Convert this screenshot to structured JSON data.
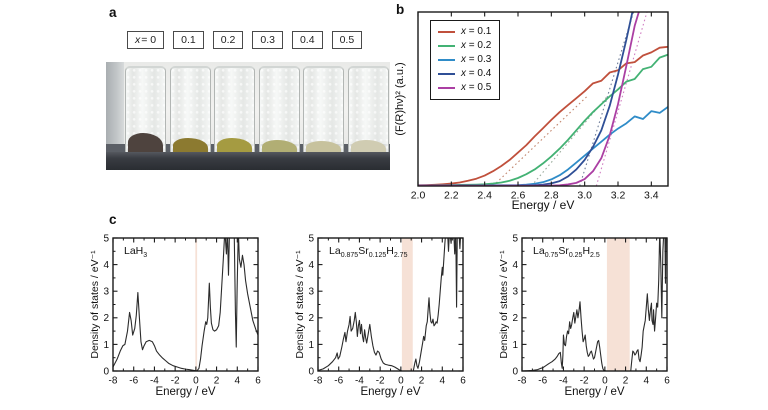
{
  "figure": {
    "panel_a_label": "a",
    "panel_b_label": "b",
    "panel_c_label": "c"
  },
  "panel_a": {
    "sample_labels": [
      "x = 0",
      "0.1",
      "0.2",
      "0.3",
      "0.4",
      "0.5"
    ],
    "vials": [
      {
        "powder_color": "#4e433e",
        "powder_height": 24
      },
      {
        "powder_color": "#8c7a30",
        "powder_height": 19
      },
      {
        "powder_color": "#a59b41",
        "powder_height": 19
      },
      {
        "powder_color": "#b1ae74",
        "powder_height": 17
      },
      {
        "powder_color": "#c7c29d",
        "powder_height": 16
      },
      {
        "powder_color": "#d0ccb2",
        "powder_height": 17
      }
    ]
  },
  "chart_data": [
    {
      "id": "tauc-plot",
      "type": "line",
      "xlabel": "Energy / eV",
      "ylabel": "(F(R)hν)² (a.u.)",
      "xlim": [
        2.0,
        3.5
      ],
      "ylim": [
        0,
        1.0
      ],
      "xticks": [
        2.0,
        2.2,
        2.4,
        2.6,
        2.8,
        3.0,
        3.2,
        3.4
      ],
      "xtick_labels": [
        "2.0",
        "2.2",
        "2.4",
        "2.6",
        "2.8",
        "3.0",
        "3.2",
        "3.4"
      ],
      "yticks": [],
      "ytick_labels": [],
      "tick_size": 10.5,
      "label_size": 12,
      "line_width": 1.8,
      "legend": true,
      "legend_position": "top-left",
      "series": [
        {
          "name": "x = 0.1",
          "color": "#c0503c",
          "x0": 2.0,
          "dx": 0.05,
          "y": [
            0.004,
            0.005,
            0.007,
            0.01,
            0.014,
            0.02,
            0.03,
            0.042,
            0.06,
            0.085,
            0.115,
            0.15,
            0.192,
            0.235,
            0.285,
            0.332,
            0.38,
            0.425,
            0.465,
            0.505,
            0.545,
            0.59,
            0.605,
            0.652,
            0.665,
            0.705,
            0.712,
            0.75,
            0.768,
            0.795,
            0.8
          ]
        },
        {
          "name": "x = 0.2",
          "color": "#43b274",
          "x0": 2.0,
          "dx": 0.05,
          "y": [
            0.003,
            0.003,
            0.004,
            0.004,
            0.005,
            0.006,
            0.007,
            0.008,
            0.01,
            0.014,
            0.02,
            0.03,
            0.046,
            0.068,
            0.095,
            0.13,
            0.17,
            0.215,
            0.265,
            0.32,
            0.375,
            0.425,
            0.47,
            0.515,
            0.555,
            0.6,
            0.615,
            0.672,
            0.685,
            0.738,
            0.755
          ]
        },
        {
          "name": "x = 0.3",
          "color": "#2f8cc8",
          "x0": 2.0,
          "dx": 0.05,
          "y": [
            0.002,
            0.002,
            0.002,
            0.002,
            0.003,
            0.003,
            0.003,
            0.003,
            0.003,
            0.004,
            0.004,
            0.004,
            0.005,
            0.008,
            0.013,
            0.022,
            0.038,
            0.062,
            0.095,
            0.135,
            0.175,
            0.215,
            0.255,
            0.295,
            0.33,
            0.36,
            0.4,
            0.385,
            0.43,
            0.42,
            0.455
          ]
        },
        {
          "name": "x = 0.4",
          "color": "#2f4f96",
          "x0": 2.0,
          "dx": 0.05,
          "y": [
            0.002,
            0.002,
            0.002,
            0.002,
            0.002,
            0.002,
            0.002,
            0.002,
            0.002,
            0.002,
            0.002,
            0.002,
            0.002,
            0.003,
            0.004,
            0.008,
            0.015,
            0.028,
            0.055,
            0.095,
            0.15,
            0.225,
            0.32,
            0.46,
            0.64,
            0.84,
            1.06
          ]
        },
        {
          "name": "x = 0.5",
          "color": "#ab3fa3",
          "x0": 2.0,
          "dx": 0.05,
          "y": [
            0.002,
            0.002,
            0.002,
            0.002,
            0.002,
            0.002,
            0.002,
            0.002,
            0.002,
            0.002,
            0.002,
            0.002,
            0.002,
            0.002,
            0.002,
            0.002,
            0.002,
            0.004,
            0.009,
            0.018,
            0.04,
            0.085,
            0.16,
            0.29,
            0.47,
            0.69,
            0.92,
            1.08
          ]
        }
      ],
      "extrapolations": [
        {
          "x1": 2.45,
          "y1": 0,
          "x2": 3.02,
          "y2": 0.52,
          "color": "#c2876f"
        },
        {
          "x1": 2.68,
          "y1": 0,
          "x2": 3.14,
          "y2": 0.52,
          "color": "#9aab9c"
        },
        {
          "x1": 2.97,
          "y1": 0,
          "x2": 3.3,
          "y2": 1.02,
          "color": "#6f7d99"
        },
        {
          "x1": 3.07,
          "y1": 0,
          "x2": 3.38,
          "y2": 1.02,
          "color": "#d07ec2"
        }
      ]
    },
    {
      "id": "dos-lah3",
      "type": "line",
      "formula": [
        {
          "t": "LaH"
        },
        {
          "t": "3",
          "sub": true
        }
      ],
      "xlabel": "Energy / eV",
      "ylabel": "Density of states / eV⁻¹",
      "xlim": [
        -8,
        6
      ],
      "ylim": [
        0,
        5
      ],
      "xticks": [
        -8,
        -6,
        -4,
        -2,
        0,
        2,
        4,
        6
      ],
      "xtick_labels": [
        "-8",
        "-6",
        "-4",
        "-2",
        "0",
        "2",
        "4",
        "6"
      ],
      "xminor": [
        -7,
        -5,
        -3,
        -1,
        1,
        3,
        5
      ],
      "yticks": [
        0,
        1,
        2,
        3,
        4,
        5
      ],
      "ytick_labels": [
        "0",
        "1",
        "2",
        "3",
        "4",
        "5"
      ],
      "yminor": [
        0.5,
        1.5,
        2.5,
        3.5,
        4.5
      ],
      "band": [
        -0.05,
        0.12
      ],
      "band_color": "#f6e1d6",
      "tick_size": 10,
      "label_size": 11.5,
      "line_width": 1.1,
      "series": [
        {
          "name": "total-dos",
          "color": "#2b2b2b",
          "x": [
            -8.0,
            -7.6,
            -7.3,
            -7.05,
            -6.85,
            -6.6,
            -6.4,
            -6.25,
            -6.1,
            -5.9,
            -5.75,
            -5.6,
            -5.45,
            -5.3,
            -5.15,
            -5.0,
            -4.8,
            -4.5,
            -4.2,
            -4.0,
            -3.8,
            -3.5,
            -3.2,
            -2.9,
            -2.6,
            -2.2,
            -1.8,
            -1.4,
            -1.0,
            -0.6,
            -0.2,
            0.1,
            0.3,
            0.45,
            0.6,
            0.8,
            0.95,
            1.05,
            1.15,
            1.3,
            1.4,
            1.5,
            1.65,
            1.8,
            2.0,
            2.2,
            2.35,
            2.5,
            2.65,
            2.8,
            2.95,
            3.05,
            3.15,
            3.25,
            3.5,
            3.7,
            3.82,
            3.9,
            3.98,
            4.1,
            4.2,
            4.35,
            4.5,
            4.65,
            4.8,
            5.0,
            5.2,
            5.5,
            5.8,
            6.0
          ],
          "y": [
            0.15,
            0.45,
            0.75,
            0.95,
            1.0,
            1.5,
            2.2,
            1.9,
            1.35,
            1.6,
            2.1,
            2.95,
            2.0,
            1.1,
            0.8,
            0.95,
            1.1,
            1.15,
            1.1,
            0.95,
            0.75,
            0.6,
            0.48,
            0.38,
            0.28,
            0.2,
            0.15,
            0.1,
            0.07,
            0.05,
            0.02,
            0.0,
            0.1,
            0.45,
            0.95,
            1.5,
            1.85,
            1.75,
            2.0,
            3.3,
            2.4,
            1.8,
            1.55,
            1.5,
            1.55,
            1.7,
            2.2,
            3.2,
            4.2,
            5.3,
            4.4,
            5.3,
            3.6,
            5.3,
            5.3,
            5.3,
            2.2,
            0.9,
            3.0,
            5.3,
            4.2,
            3.9,
            4.35,
            4.0,
            3.4,
            2.9,
            2.5,
            1.9,
            1.55,
            1.35
          ]
        }
      ]
    },
    {
      "id": "dos-la0875",
      "type": "line",
      "formula": [
        {
          "t": "La"
        },
        {
          "t": "0.875",
          "sub": true
        },
        {
          "t": "Sr"
        },
        {
          "t": "0.125",
          "sub": true
        },
        {
          "t": "H"
        },
        {
          "t": "2.75",
          "sub": true
        }
      ],
      "xlabel": "Energy / eV",
      "ylabel": "Density of states / eV⁻¹",
      "xlim": [
        -8,
        6
      ],
      "ylim": [
        0,
        5
      ],
      "xticks": [
        -8,
        -6,
        -4,
        -2,
        0,
        2,
        4,
        6
      ],
      "xtick_labels": [
        "-8",
        "-6",
        "-4",
        "-2",
        "0",
        "2",
        "4",
        "6"
      ],
      "xminor": [
        -7,
        -5,
        -3,
        -1,
        1,
        3,
        5
      ],
      "yticks": [
        0,
        1,
        2,
        3,
        4,
        5
      ],
      "ytick_labels": [
        "0",
        "1",
        "2",
        "3",
        "4",
        "5"
      ],
      "yminor": [
        0.5,
        1.5,
        2.5,
        3.5,
        4.5
      ],
      "band": [
        0.1,
        1.15
      ],
      "band_color": "#f6e1d6",
      "tick_size": 10,
      "label_size": 11.5,
      "line_width": 1.1,
      "series": [
        {
          "name": "total-dos",
          "color": "#2b2b2b",
          "x": [
            -8,
            -7.5,
            -7.0,
            -6.6,
            -6.3,
            -6.15,
            -6.05,
            -5.9,
            -5.7,
            -5.55,
            -5.4,
            -5.3,
            -5.15,
            -5.0,
            -4.9,
            -4.8,
            -4.65,
            -4.5,
            -4.4,
            -4.3,
            -4.2,
            -4.1,
            -4.0,
            -3.9,
            -3.8,
            -3.7,
            -3.6,
            -3.5,
            -3.4,
            -3.3,
            -3.15,
            -3.0,
            -2.85,
            -2.7,
            -2.55,
            -2.4,
            -2.25,
            -2.1,
            -1.9,
            -1.7,
            -1.5,
            -1.2,
            -0.9,
            -0.6,
            -0.3,
            -0.1,
            0.1,
            1.2,
            1.35,
            1.45,
            1.55,
            1.65,
            1.8,
            1.95,
            2.1,
            2.2,
            2.3,
            2.45,
            2.55,
            2.65,
            2.72,
            2.8,
            2.9,
            3.0,
            3.1,
            3.2,
            3.3,
            3.4,
            3.5,
            3.6,
            3.7,
            3.8,
            3.9,
            4.0,
            4.05,
            4.15,
            4.25,
            4.35,
            4.5,
            4.6,
            4.7,
            4.85,
            4.95,
            5.1,
            5.2,
            5.3,
            5.38,
            5.45,
            5.6,
            5.7,
            5.8,
            6.0
          ],
          "y": [
            0.02,
            0.08,
            0.2,
            0.35,
            0.5,
            0.68,
            0.45,
            0.55,
            0.9,
            1.2,
            1.45,
            1.1,
            1.5,
            1.75,
            2.05,
            1.5,
            1.6,
            1.9,
            2.2,
            1.85,
            1.3,
            1.7,
            1.9,
            1.4,
            1.75,
            1.3,
            1.1,
            1.55,
            1.25,
            1.05,
            1.4,
            1.75,
            1.3,
            0.95,
            0.7,
            0.6,
            0.75,
            0.7,
            0.45,
            0.3,
            0.25,
            0.22,
            0.2,
            0.15,
            0.08,
            0.03,
            0.0,
            0.0,
            0.3,
            0.45,
            0.2,
            0.1,
            0.35,
            0.7,
            1.05,
            1.3,
            1.15,
            1.7,
            1.85,
            2.4,
            2.75,
            2.2,
            1.85,
            1.8,
            1.95,
            1.7,
            1.75,
            1.85,
            1.8,
            2.1,
            2.5,
            3.0,
            3.5,
            3.9,
            3.6,
            4.2,
            4.8,
            5.3,
            5.3,
            4.5,
            5.3,
            4.8,
            5.3,
            5.3,
            4.4,
            5.3,
            2.4,
            5.3,
            5.3,
            4.6,
            5.3,
            5.3
          ]
        }
      ]
    },
    {
      "id": "dos-la075",
      "type": "line",
      "formula": [
        {
          "t": "La"
        },
        {
          "t": "0.75",
          "sub": true
        },
        {
          "t": "Sr"
        },
        {
          "t": "0.25",
          "sub": true
        },
        {
          "t": "H"
        },
        {
          "t": "2.5",
          "sub": true
        }
      ],
      "xlabel": "Energy / eV",
      "ylabel": "Density of states / eV⁻¹",
      "xlim": [
        -8,
        6
      ],
      "ylim": [
        0,
        5
      ],
      "xticks": [
        -8,
        -6,
        -4,
        -2,
        0,
        2,
        4,
        6
      ],
      "xtick_labels": [
        "-8",
        "-6",
        "-4",
        "-2",
        "0",
        "2",
        "4",
        "6"
      ],
      "xminor": [
        -7,
        -5,
        -3,
        -1,
        1,
        3,
        5
      ],
      "yticks": [
        0,
        1,
        2,
        3,
        4,
        5
      ],
      "ytick_labels": [
        "0",
        "1",
        "2",
        "3",
        "4",
        "5"
      ],
      "yminor": [
        0.5,
        1.5,
        2.5,
        3.5,
        4.5
      ],
      "band": [
        0.2,
        2.4
      ],
      "band_color": "#f6e1d6",
      "tick_size": 10,
      "label_size": 11.5,
      "line_width": 1.1,
      "series": [
        {
          "name": "total-dos",
          "color": "#2b2b2b",
          "x": [
            -8,
            -7.0,
            -6.5,
            -6.2,
            -6.0,
            -5.7,
            -5.4,
            -5.1,
            -4.8,
            -4.6,
            -4.45,
            -4.3,
            -4.2,
            -4.12,
            -4.05,
            -4.0,
            -3.9,
            -3.8,
            -3.7,
            -3.6,
            -3.5,
            -3.4,
            -3.3,
            -3.2,
            -3.1,
            -3.0,
            -2.9,
            -2.8,
            -2.7,
            -2.6,
            -2.5,
            -2.4,
            -2.3,
            -2.2,
            -2.1,
            -2.0,
            -1.9,
            -1.8,
            -1.7,
            -1.6,
            -1.5,
            -1.4,
            -1.3,
            -1.2,
            -1.1,
            -1.0,
            -0.9,
            -0.8,
            -0.7,
            -0.6,
            -0.5,
            -0.4,
            -0.3,
            -0.2,
            -0.1,
            0.15,
            2.5,
            2.6,
            2.7,
            2.8,
            2.9,
            3.0,
            3.1,
            3.2,
            3.3,
            3.4,
            3.5,
            3.6,
            3.7,
            3.8,
            3.9,
            4.0,
            4.1,
            4.2,
            4.3,
            4.4,
            4.5,
            4.55,
            4.65,
            4.7,
            4.8,
            4.9,
            5.0,
            5.1,
            5.2,
            5.3,
            5.4,
            5.5,
            5.6,
            5.7,
            5.8,
            5.85,
            5.9,
            6.0
          ],
          "y": [
            0.0,
            0.02,
            0.05,
            0.1,
            0.12,
            0.2,
            0.28,
            0.35,
            0.45,
            0.55,
            0.65,
            0.7,
            0.3,
            0.1,
            0.6,
            1.35,
            1.0,
            0.95,
            1.3,
            1.5,
            1.4,
            1.85,
            1.6,
            1.75,
            2.0,
            2.2,
            1.8,
            2.05,
            2.3,
            2.0,
            2.25,
            2.6,
            2.0,
            1.5,
            1.1,
            1.2,
            1.35,
            0.95,
            0.7,
            0.55,
            0.6,
            0.7,
            0.75,
            0.6,
            0.45,
            0.5,
            0.7,
            0.9,
            1.1,
            1.15,
            0.9,
            0.6,
            0.3,
            0.1,
            0.02,
            0.0,
            0.0,
            0.4,
            0.75,
            0.7,
            0.6,
            0.65,
            0.75,
            0.8,
            0.45,
            0.35,
            0.6,
            0.9,
            1.5,
            1.7,
            1.9,
            2.4,
            2.9,
            2.3,
            1.9,
            2.3,
            2.55,
            1.9,
            1.75,
            2.3,
            1.5,
            2.0,
            2.55,
            2.4,
            3.4,
            5.3,
            4.0,
            2.0,
            4.5,
            5.3,
            5.3,
            3.3,
            5.3,
            5.3
          ]
        }
      ]
    }
  ]
}
